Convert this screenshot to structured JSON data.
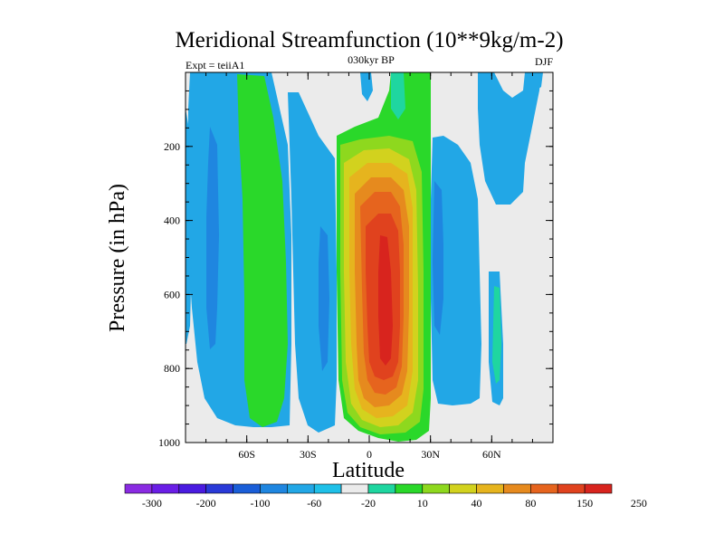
{
  "chart_data": {
    "type": "contour",
    "title": "Meridional Streamfunction (10**9kg/m-2)",
    "subtitle_left": "Expt = teiiA1",
    "subtitle_center": "030kyr BP",
    "subtitle_right": "DJF",
    "xlabel": "Latitude",
    "ylabel": "Pressure (in hPa)",
    "xlim": [
      -90,
      90
    ],
    "ylim": [
      1000,
      0
    ],
    "x_ticks": [
      {
        "value": -60,
        "label": "60S"
      },
      {
        "value": -30,
        "label": "30S"
      },
      {
        "value": 0,
        "label": "0"
      },
      {
        "value": 30,
        "label": "30N"
      },
      {
        "value": 60,
        "label": "60N"
      }
    ],
    "y_ticks": [
      {
        "value": 200,
        "label": "200"
      },
      {
        "value": 400,
        "label": "400"
      },
      {
        "value": 600,
        "label": "600"
      },
      {
        "value": 800,
        "label": "800"
      },
      {
        "value": 1000,
        "label": "1000"
      }
    ],
    "colorbar": {
      "labels": [
        "-300",
        "-200",
        "-100",
        "-60",
        "-20",
        "10",
        "40",
        "80",
        "150",
        "250"
      ],
      "colors": [
        "#8a2be2",
        "#6a1ee6",
        "#4a1be0",
        "#2a3ad8",
        "#1a5ed8",
        "#1f86e0",
        "#22a7e6",
        "#1fc0e8",
        "#ebebeb",
        "#1fd6a0",
        "#2ad82a",
        "#8ed81e",
        "#d2d21e",
        "#e6b41e",
        "#e68a1e",
        "#e6641e",
        "#e0421e",
        "#d8241e"
      ]
    },
    "background_color": "#ebebeb",
    "regions": [
      {
        "level": -20,
        "color": "#22a7e6",
        "lat_range": [
          -80,
          -48
        ],
        "p_range": [
          0,
          970
        ],
        "description_level": "cyan band southern"
      },
      {
        "level": 40,
        "color": "#2ad82a",
        "lat_range": [
          -62,
          -48
        ],
        "p_range": [
          30,
          970
        ]
      },
      {
        "level": -20,
        "color": "#22a7e6",
        "lat_range": [
          -45,
          -18
        ],
        "p_range": [
          100,
          970
        ]
      },
      {
        "level": -60,
        "color": "#1f86e0",
        "lat_range": [
          -24,
          -18
        ],
        "p_range": [
          420,
          840
        ]
      },
      {
        "level": 40,
        "color": "#2ad82a",
        "lat_range": [
          -15,
          30
        ],
        "p_range": [
          0,
          1000
        ]
      },
      {
        "level": 80,
        "color": "#d2d21e",
        "lat_range": [
          -12,
          28
        ],
        "p_range": [
          180,
          980
        ]
      },
      {
        "level": 150,
        "color": "#e68a1e",
        "lat_range": [
          -8,
          26
        ],
        "p_range": [
          250,
          940
        ]
      },
      {
        "level": 250,
        "color": "#e0421e",
        "lat_range": [
          0,
          20
        ],
        "p_range": [
          310,
          880
        ]
      },
      {
        "level": 250,
        "color": "#d8241e",
        "lat_range": [
          6,
          14
        ],
        "p_range": [
          400,
          780
        ]
      },
      {
        "level": -20,
        "color": "#22a7e6",
        "lat_range": [
          30,
          50
        ],
        "p_range": [
          150,
          960
        ]
      },
      {
        "level": -20,
        "color": "#22a7e6",
        "lat_range": [
          50,
          80
        ],
        "p_range": [
          0,
          350
        ]
      },
      {
        "level": 40,
        "color": "#1fd6a0",
        "lat_range": [
          60,
          64
        ],
        "p_range": [
          560,
          940
        ]
      }
    ]
  }
}
